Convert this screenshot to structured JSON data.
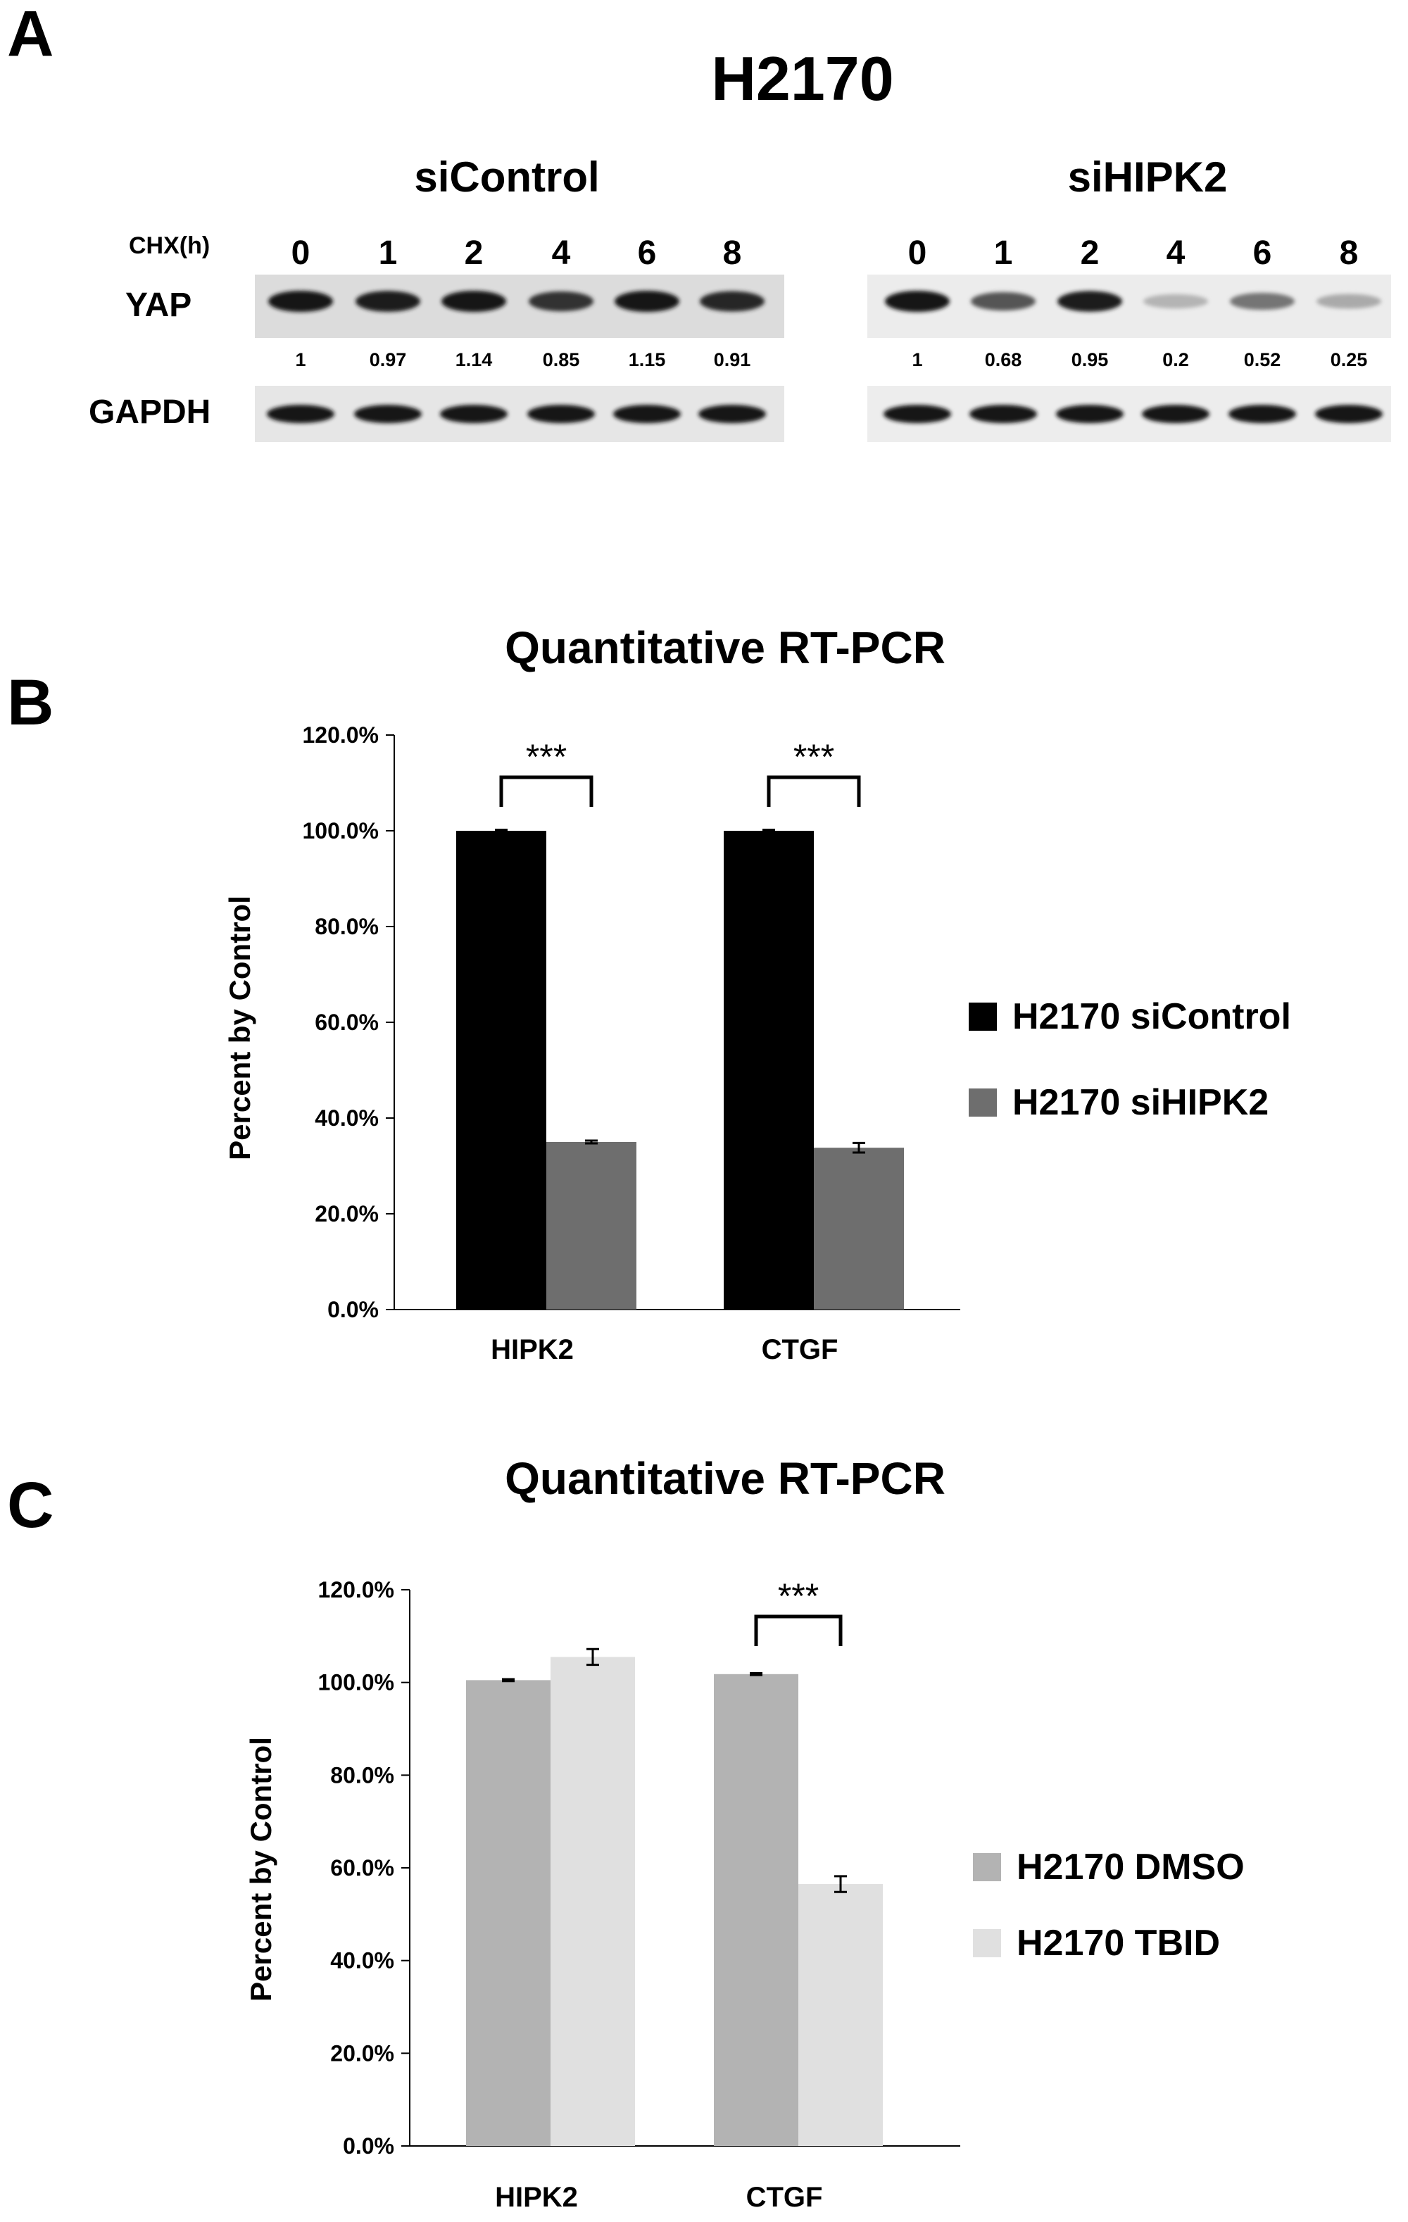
{
  "panelA": {
    "letter": "A",
    "cell_line": "H2170",
    "chx_label": "CHX(h)",
    "row_labels": [
      "YAP",
      "GAPDH"
    ],
    "conditions": [
      {
        "title": "siControl",
        "lanes": [
          "0",
          "1",
          "2",
          "4",
          "6",
          "8"
        ],
        "yap_quant": [
          "1",
          "0.97",
          "1.14",
          "0.85",
          "1.15",
          "0.91"
        ],
        "yap_intensity": [
          1,
          0.97,
          1.14,
          0.85,
          1.15,
          0.91
        ]
      },
      {
        "title": "siHIPK2",
        "lanes": [
          "0",
          "1",
          "2",
          "4",
          "6",
          "8"
        ],
        "yap_quant": [
          "1",
          "0.68",
          "0.95",
          "0.2",
          "0.52",
          "0.25"
        ],
        "yap_intensity": [
          1,
          0.68,
          0.95,
          0.2,
          0.52,
          0.25
        ]
      }
    ]
  },
  "panelB": {
    "letter": "B"
  },
  "panelC": {
    "letter": "C"
  },
  "chart_data": [
    {
      "type": "bar",
      "title": "Quantitative RT-PCR",
      "ylabel": "Percent by Control",
      "xlabel": "",
      "categories": [
        "HIPK2",
        "CTGF"
      ],
      "ylim": [
        0,
        120
      ],
      "yticks": [
        "0.0%",
        "20.0%",
        "40.0%",
        "60.0%",
        "80.0%",
        "100.0%",
        "120.0%"
      ],
      "series": [
        {
          "name": "H2170 siControl",
          "color": "#000000",
          "values": [
            100.0,
            100.0
          ],
          "errors": [
            0.2,
            0.2
          ]
        },
        {
          "name": "H2170 siHIPK2",
          "color": "#6e6e6e",
          "values": [
            35.0,
            33.8
          ],
          "errors": [
            0.3,
            1.0
          ]
        }
      ],
      "significance": [
        {
          "category": "HIPK2",
          "label": "***"
        },
        {
          "category": "CTGF",
          "label": "***"
        }
      ],
      "legend_position": "right",
      "grid": false
    },
    {
      "type": "bar",
      "title": "Quantitative RT-PCR",
      "ylabel": "Percent by Control",
      "xlabel": "",
      "categories": [
        "HIPK2",
        "CTGF"
      ],
      "ylim": [
        0,
        120
      ],
      "yticks": [
        "0.0%",
        "20.0%",
        "40.0%",
        "60.0%",
        "80.0%",
        "100.0%",
        "120.0%"
      ],
      "series": [
        {
          "name": "H2170 DMSO",
          "color": "#b3b3b3",
          "values": [
            100.5,
            101.8
          ],
          "errors": [
            0.2,
            0.2
          ]
        },
        {
          "name": "H2170 TBID",
          "color": "#e0e0e0",
          "values": [
            105.5,
            56.5
          ],
          "errors": [
            1.7,
            1.7
          ]
        }
      ],
      "significance": [
        {
          "category": "CTGF",
          "label": "***"
        }
      ],
      "legend_position": "right",
      "grid": false
    }
  ]
}
